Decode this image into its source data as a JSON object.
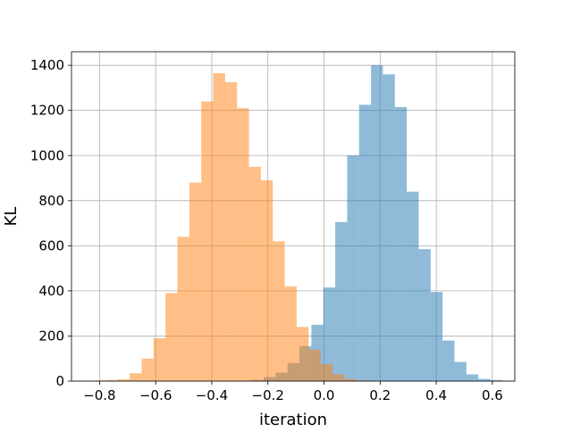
{
  "chart_data": {
    "type": "bar",
    "title": "",
    "xlabel": "iteration",
    "ylabel": "KL",
    "xlim": [
      -0.9,
      0.68
    ],
    "ylim": [
      0,
      1460
    ],
    "grid": true,
    "legend": "none",
    "x_ticks": [
      -0.8,
      -0.6,
      -0.4,
      -0.2,
      0.0,
      0.2,
      0.4,
      0.6
    ],
    "x_tick_labels": [
      "−0.8",
      "−0.6",
      "−0.4",
      "−0.2",
      "0.0",
      "0.2",
      "0.4",
      "0.6"
    ],
    "y_ticks": [
      0,
      200,
      400,
      600,
      800,
      1000,
      1200,
      1400
    ],
    "y_tick_labels": [
      "0",
      "200",
      "400",
      "600",
      "800",
      "1000",
      "1200",
      "1400"
    ],
    "series": [
      {
        "color": "#1f77b4",
        "opacity": 0.5,
        "bin_start": -0.3,
        "bin_width": 0.0425,
        "counts": [
          2,
          5,
          18,
          38,
          80,
          155,
          250,
          415,
          705,
          1000,
          1225,
          1400,
          1360,
          1215,
          840,
          585,
          395,
          180,
          85,
          30,
          10,
          5,
          2
        ]
      },
      {
        "color": "#ff7f0e",
        "opacity": 0.5,
        "bin_start": -0.82,
        "bin_width": 0.0425,
        "counts": [
          3,
          5,
          8,
          35,
          100,
          190,
          390,
          640,
          880,
          1240,
          1365,
          1325,
          1210,
          950,
          890,
          620,
          420,
          240,
          140,
          75,
          30,
          10,
          3,
          1
        ]
      }
    ]
  }
}
